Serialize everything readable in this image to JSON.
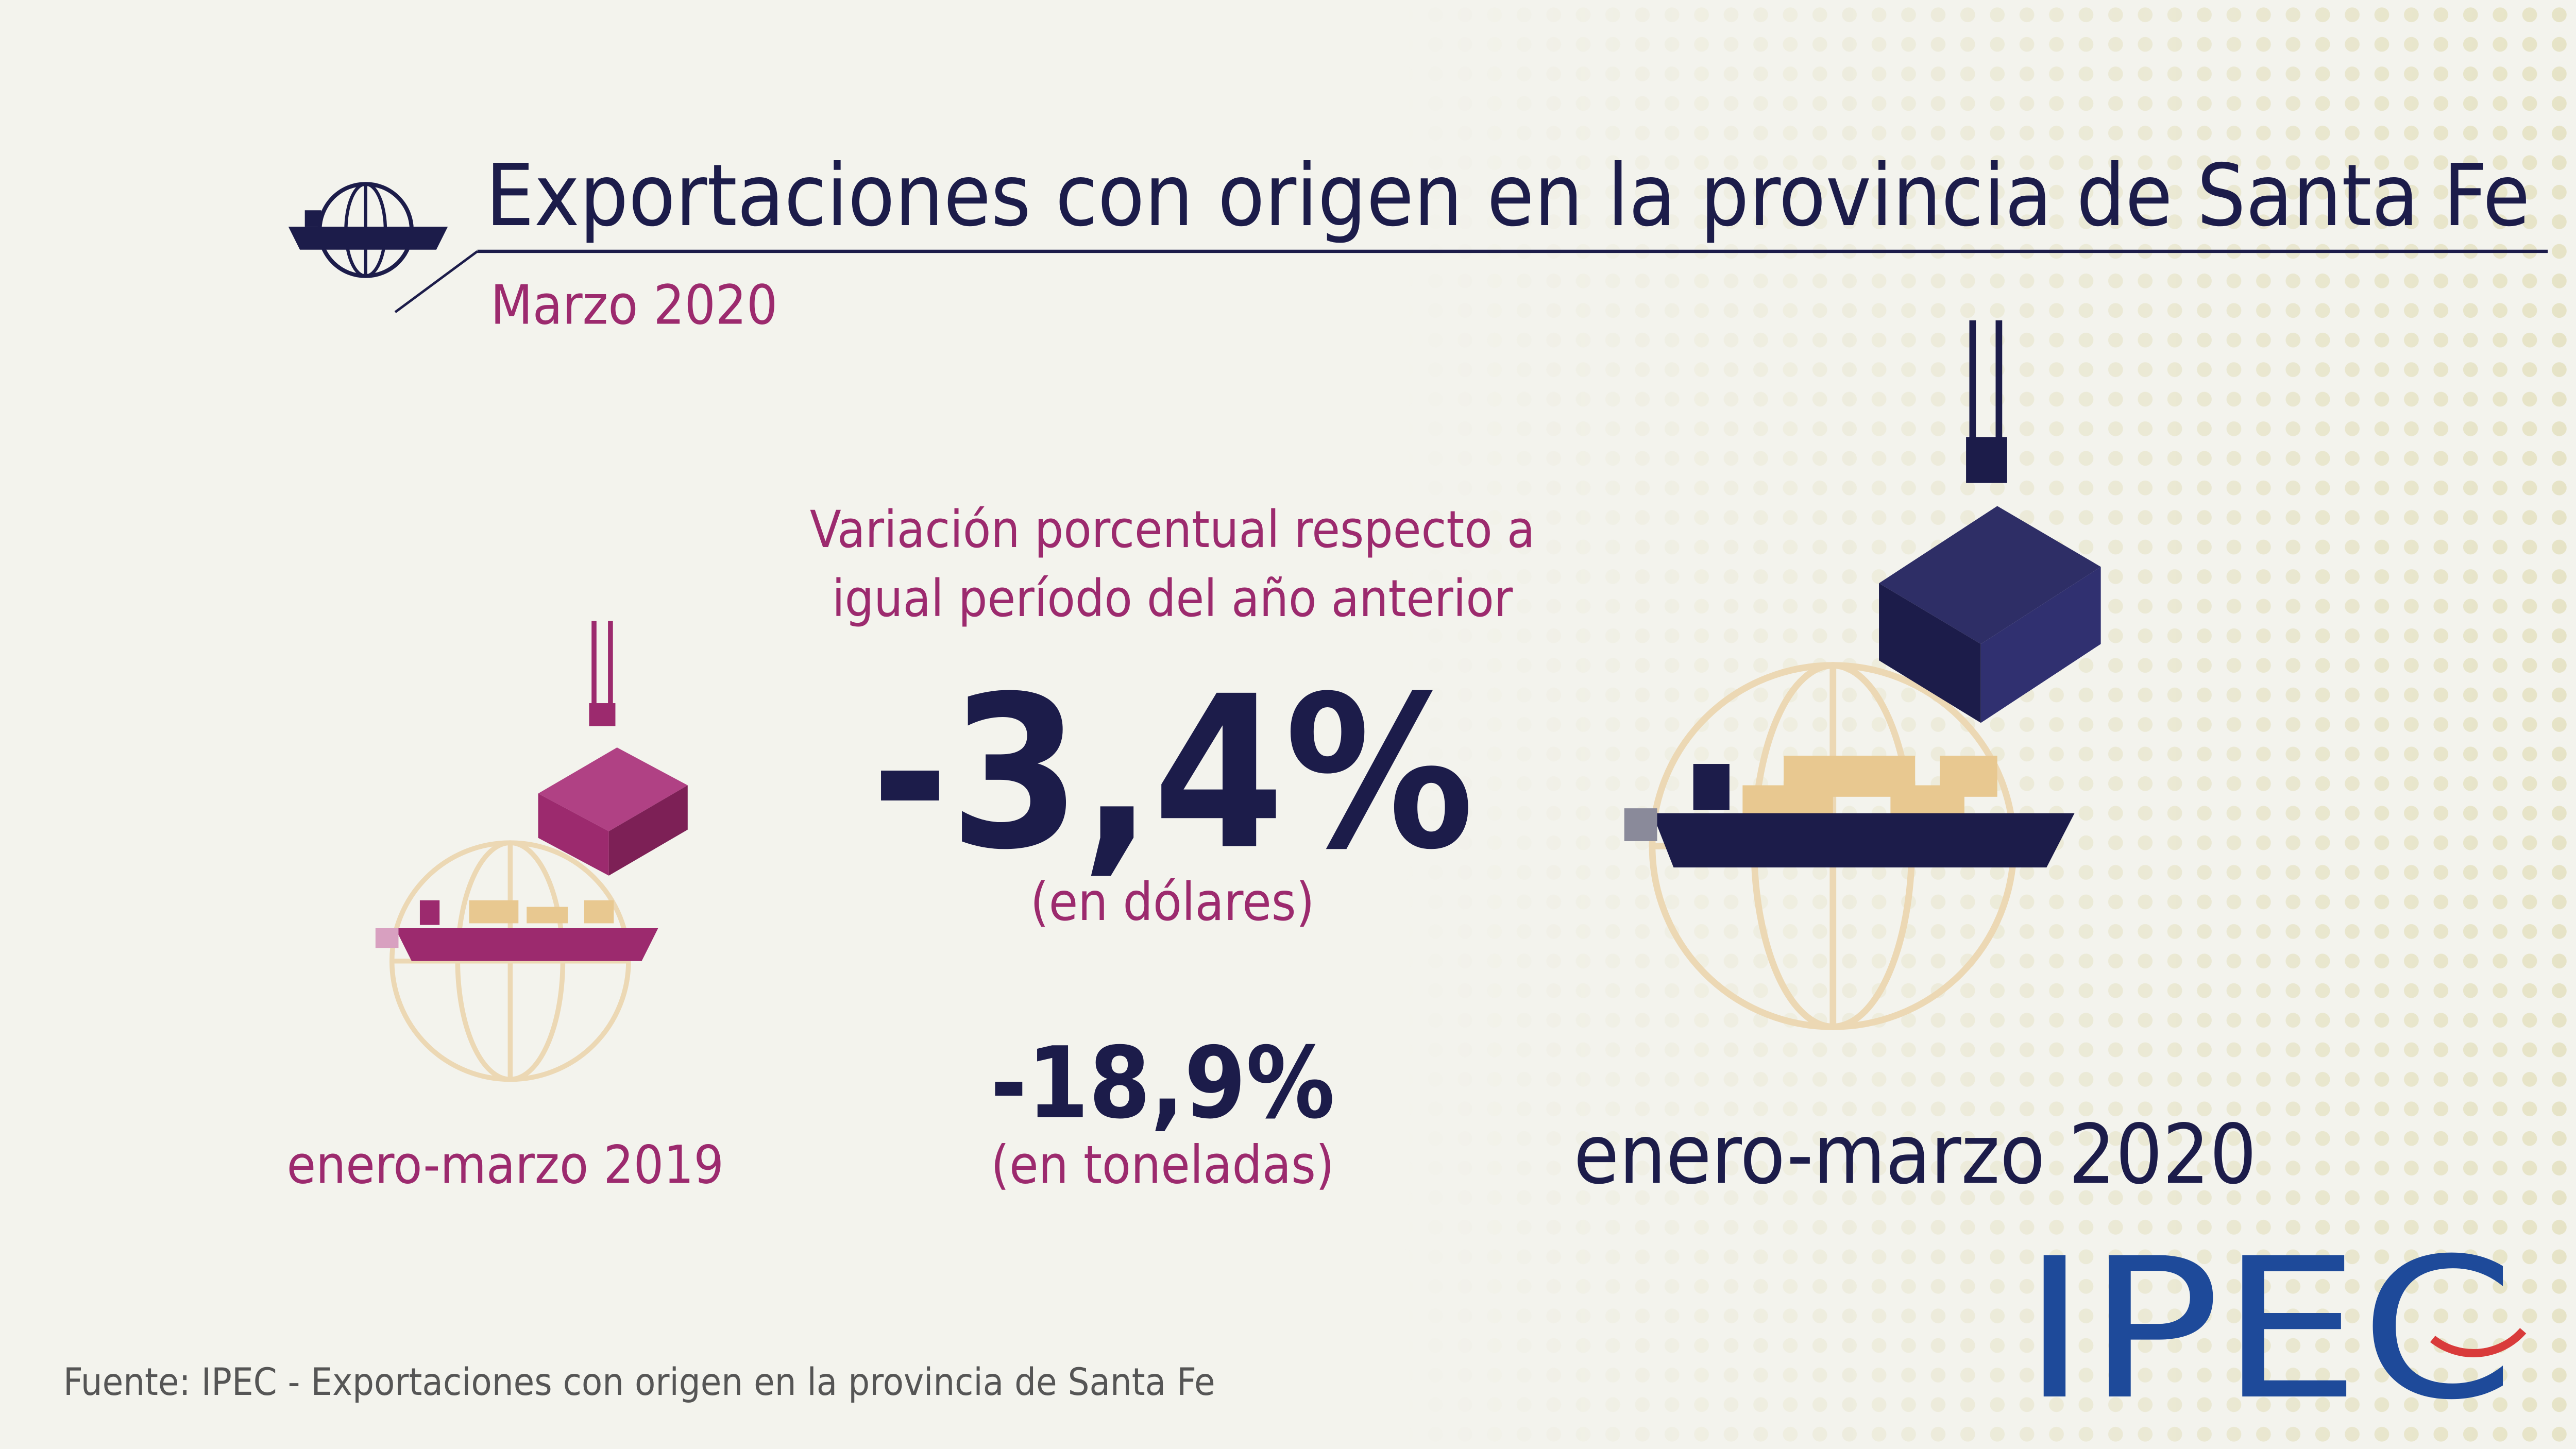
{
  "header": {
    "title": "Exportaciones con origen en la provincia de Santa Fe",
    "subtitle": "Marzo 2020"
  },
  "comparison": {
    "caption": [
      "Variación porcentual respecto a",
      "igual período del año anterior"
    ],
    "stats": [
      {
        "value": "-3,4%",
        "unit": "(en dólares)"
      },
      {
        "value": "-18,9%",
        "unit": "(en toneladas)"
      }
    ]
  },
  "periods": {
    "from": "enero-marzo 2019",
    "to": "enero-marzo 2020"
  },
  "source": "Fuente: IPEC - Exportaciones con origen en la provincia de Santa Fe",
  "logo": "IPEC"
}
